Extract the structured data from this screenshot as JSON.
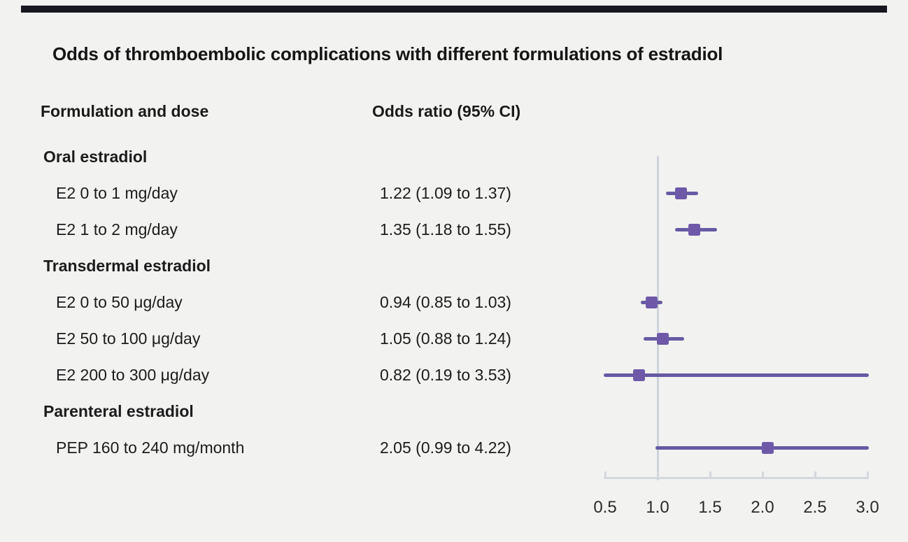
{
  "page": {
    "background": "#f2f2f1",
    "top_rule_color": "#17171f"
  },
  "header": {
    "title": "Odds of thromboembolic complications with different formulations of estradiol"
  },
  "columns": {
    "formulation": "Formulation and dose",
    "odds_ratio": "Odds ratio (95% CI)"
  },
  "chart_data": {
    "type": "forest",
    "title": "Odds of thromboembolic complications with different formulations of estradiol",
    "xlabel": "Odds ratio",
    "xlim": [
      0.5,
      3.0
    ],
    "reference_line": 1.0,
    "x_tick_labels": [
      "0.5",
      "1.0",
      "1.5",
      "2.0",
      "2.5",
      "3.0"
    ],
    "x_tick_values": [
      0.5,
      1.0,
      1.5,
      2.0,
      2.5,
      3.0
    ],
    "grid": false,
    "legend": false,
    "rows": [
      {
        "type": "group",
        "label": "Oral estradiol"
      },
      {
        "type": "item",
        "label": "E2 0 to 1 mg/day",
        "value_text": "1.22 (1.09 to 1.37)",
        "or": 1.22,
        "ci_low": 1.09,
        "ci_high": 1.37
      },
      {
        "type": "item",
        "label": "E2 1 to 2 mg/day",
        "value_text": "1.35 (1.18 to 1.55)",
        "or": 1.35,
        "ci_low": 1.18,
        "ci_high": 1.55
      },
      {
        "type": "group",
        "label": "Transdermal estradiol"
      },
      {
        "type": "item",
        "label": "E2 0 to 50 μg/day",
        "value_text": "0.94 (0.85 to 1.03)",
        "or": 0.94,
        "ci_low": 0.85,
        "ci_high": 1.03
      },
      {
        "type": "item",
        "label": "E2 50 to 100 μg/day",
        "value_text": "1.05 (0.88 to 1.24)",
        "or": 1.05,
        "ci_low": 0.88,
        "ci_high": 1.24
      },
      {
        "type": "item",
        "label": "E2 200 to 300 μg/day",
        "value_text": "0.82 (0.19 to 3.53)",
        "or": 0.82,
        "ci_low": 0.19,
        "ci_high": 3.53
      },
      {
        "type": "group",
        "label": "Parenteral estradiol"
      },
      {
        "type": "item",
        "label": "PEP 160 to 240 mg/month",
        "value_text": "2.05 (0.99 to 4.22)",
        "or": 2.05,
        "ci_low": 0.99,
        "ci_high": 4.22
      }
    ]
  },
  "colors": {
    "ci_line": "#675aa3",
    "marker": "#6e59a9",
    "axis": "#d3d7de",
    "reference_line": "#cdd3da",
    "text": "#1c1c1c"
  }
}
